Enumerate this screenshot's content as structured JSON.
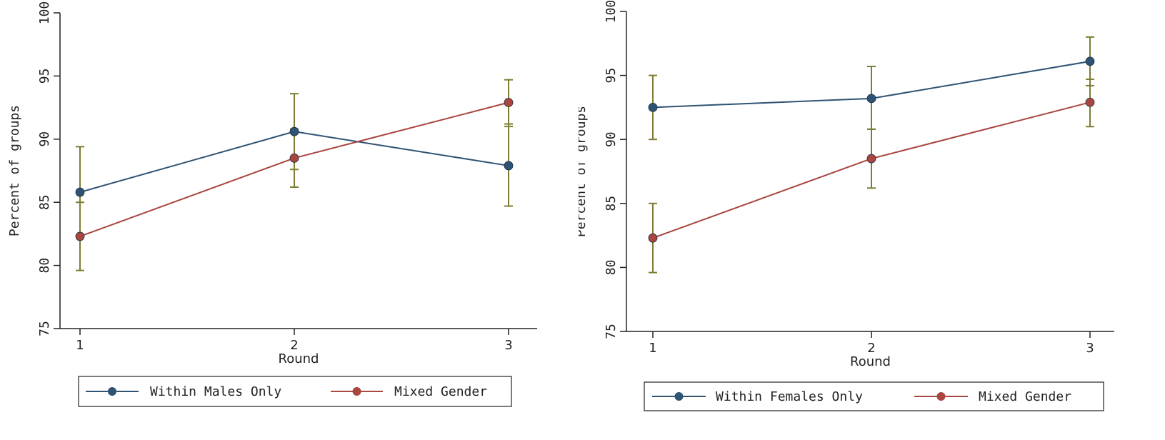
{
  "chart_data": [
    {
      "type": "line",
      "title": "",
      "xlabel": "Round",
      "ylabel": "Percent of groups",
      "ylim": [
        75,
        100
      ],
      "yticks": [
        75,
        80,
        85,
        90,
        95,
        100
      ],
      "x": [
        1,
        2,
        3
      ],
      "xticks": [
        "1",
        "2",
        "3"
      ],
      "series": [
        {
          "name": "Within Males Only",
          "color": "#2f5374",
          "values": [
            85.8,
            90.6,
            87.9
          ],
          "ci_low": [
            82.3,
            87.6,
            84.7
          ],
          "ci_high": [
            89.4,
            93.6,
            91.2
          ]
        },
        {
          "name": "Mixed Gender",
          "color": "#a8463f",
          "values": [
            82.3,
            88.5,
            92.9
          ],
          "ci_low": [
            79.6,
            86.2,
            91.0
          ],
          "ci_high": [
            85.0,
            90.8,
            94.7
          ]
        }
      ],
      "errorbar_color": "#7c7d33",
      "legend_position": "bottom"
    },
    {
      "type": "line",
      "title": "",
      "xlabel": "Round",
      "ylabel": "Percent of groups",
      "ylim": [
        75,
        100
      ],
      "yticks": [
        75,
        80,
        85,
        90,
        95,
        100
      ],
      "x": [
        1,
        2,
        3
      ],
      "xticks": [
        "1",
        "2",
        "3"
      ],
      "series": [
        {
          "name": "Within Females Only",
          "color": "#2f5374",
          "values": [
            92.5,
            93.2,
            96.1
          ],
          "ci_low": [
            90.0,
            90.8,
            94.2
          ],
          "ci_high": [
            95.0,
            95.7,
            98.0
          ]
        },
        {
          "name": "Mixed Gender",
          "color": "#a8463f",
          "values": [
            82.3,
            88.5,
            92.9
          ],
          "ci_low": [
            79.6,
            86.2,
            91.0
          ],
          "ci_high": [
            85.0,
            90.8,
            94.7
          ]
        }
      ],
      "errorbar_color": "#7c7d33",
      "legend_position": "bottom"
    }
  ]
}
